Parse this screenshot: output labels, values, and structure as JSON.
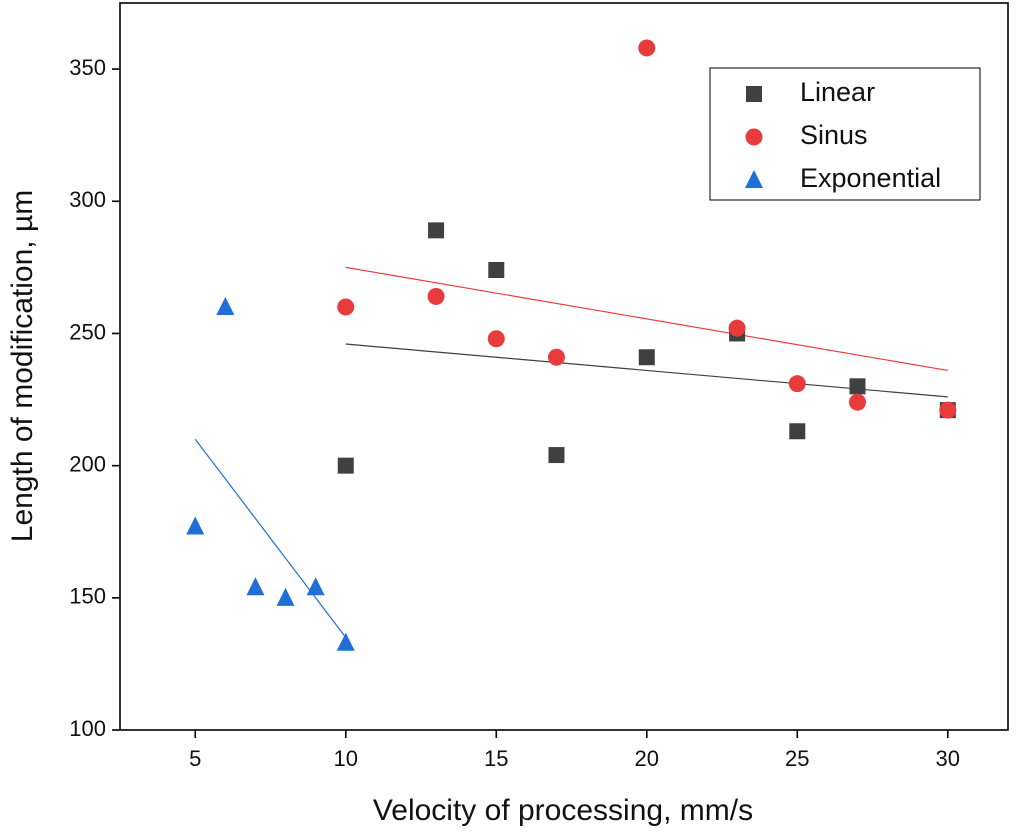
{
  "chart_data": {
    "type": "scatter",
    "x_label": "Velocity of processing, mm/s",
    "y_label": "Length of modification, µm",
    "xlim": [
      2.5,
      32
    ],
    "ylim": [
      100,
      375
    ],
    "xticks": [
      5,
      10,
      15,
      20,
      25,
      30
    ],
    "yticks": [
      100,
      150,
      200,
      250,
      300,
      350
    ],
    "legend": "upper right",
    "series": [
      {
        "name": "Linear",
        "color": "#404040",
        "marker": "square",
        "x": [
          10,
          13,
          15,
          17,
          20,
          23,
          25,
          27,
          30
        ],
        "values": [
          200,
          289,
          274,
          204,
          241,
          250,
          213,
          230,
          221
        ],
        "fit_x": [
          10,
          30
        ],
        "fit_values": [
          246,
          226
        ]
      },
      {
        "name": "Sinus",
        "color": "#e83c3c",
        "marker": "circle",
        "x": [
          10,
          13,
          15,
          17,
          20,
          23,
          25,
          27,
          30
        ],
        "values": [
          260,
          264,
          248,
          241,
          358,
          252,
          231,
          224,
          221
        ],
        "fit_x": [
          10,
          30
        ],
        "fit_values": [
          275,
          236
        ]
      },
      {
        "name": "Exponential",
        "color": "#1f6fd6",
        "marker": "triangle",
        "x": [
          5,
          6,
          7,
          8,
          9,
          10
        ],
        "values": [
          177,
          260,
          154,
          150,
          154,
          133
        ],
        "fit_x": [
          5,
          10
        ],
        "fit_values": [
          210,
          135
        ]
      }
    ]
  }
}
